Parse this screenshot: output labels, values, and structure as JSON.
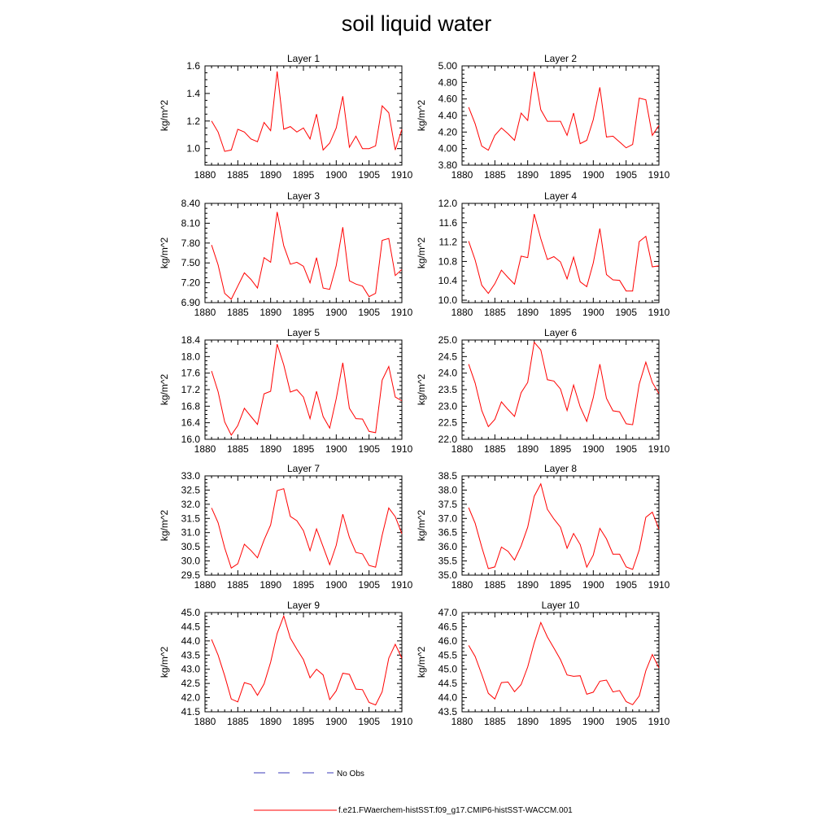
{
  "title": "soil liquid water",
  "legend": {
    "entries": [
      {
        "label": "No Obs",
        "color": "#3b3bb8",
        "dashed": true
      },
      {
        "label": "f.e21.FWaerchem-histSST.f09_g17.CMIP6-histSST-WACCM.001",
        "color": "#ff0000",
        "dashed": false
      }
    ]
  },
  "chart_data": [
    {
      "type": "line",
      "title": "Layer 1",
      "ylabel": "kg/m^2",
      "xlim": [
        1880,
        1910
      ],
      "ylim": [
        0.88,
        1.6
      ],
      "xticks": [
        "1880",
        "1885",
        "1890",
        "1895",
        "1900",
        "1905",
        "1910"
      ],
      "yticks": [
        "1.0",
        "1.2",
        "1.4",
        "1.6"
      ],
      "x": [
        1881,
        1882,
        1883,
        1884,
        1885,
        1886,
        1887,
        1888,
        1889,
        1890,
        1891,
        1892,
        1893,
        1894,
        1895,
        1896,
        1897,
        1898,
        1899,
        1900,
        1901,
        1902,
        1903,
        1904,
        1905,
        1906,
        1907,
        1908,
        1909,
        1910
      ],
      "series": [
        {
          "color": "#ff0000",
          "values": [
            1.2,
            1.12,
            0.98,
            0.99,
            1.14,
            1.12,
            1.07,
            1.05,
            1.19,
            1.13,
            1.56,
            1.14,
            1.16,
            1.12,
            1.15,
            1.07,
            1.25,
            0.99,
            1.04,
            1.15,
            1.38,
            1.01,
            1.09,
            1.0,
            1.0,
            1.02,
            1.31,
            1.26,
            0.99,
            1.14
          ]
        }
      ]
    },
    {
      "type": "line",
      "title": "Layer 2",
      "ylabel": "kg/m^2",
      "xlim": [
        1880,
        1910
      ],
      "ylim": [
        3.8,
        5.0
      ],
      "xticks": [
        "1880",
        "1885",
        "1890",
        "1895",
        "1900",
        "1905",
        "1910"
      ],
      "yticks": [
        "3.80",
        "4.00",
        "4.20",
        "4.40",
        "4.60",
        "4.80",
        "5.00"
      ],
      "x": [
        1881,
        1882,
        1883,
        1884,
        1885,
        1886,
        1887,
        1888,
        1889,
        1890,
        1891,
        1892,
        1893,
        1894,
        1895,
        1896,
        1897,
        1898,
        1899,
        1900,
        1901,
        1902,
        1903,
        1904,
        1905,
        1906,
        1907,
        1908,
        1909,
        1910
      ],
      "series": [
        {
          "color": "#ff0000",
          "values": [
            4.5,
            4.3,
            4.03,
            3.98,
            4.16,
            4.25,
            4.18,
            4.1,
            4.43,
            4.34,
            4.93,
            4.47,
            4.33,
            4.33,
            4.33,
            4.16,
            4.43,
            4.06,
            4.1,
            4.35,
            4.74,
            4.14,
            4.15,
            4.08,
            4.01,
            4.05,
            4.61,
            4.59,
            4.16,
            4.28
          ]
        }
      ]
    },
    {
      "type": "line",
      "title": "Layer 3",
      "ylabel": "kg/m^2",
      "xlim": [
        1880,
        1910
      ],
      "ylim": [
        6.9,
        8.4
      ],
      "xticks": [
        "1880",
        "1885",
        "1890",
        "1895",
        "1900",
        "1905",
        "1910"
      ],
      "yticks": [
        "6.90",
        "7.20",
        "7.50",
        "7.80",
        "8.10",
        "8.40"
      ],
      "x": [
        1881,
        1882,
        1883,
        1884,
        1885,
        1886,
        1887,
        1888,
        1889,
        1890,
        1891,
        1892,
        1893,
        1894,
        1895,
        1896,
        1897,
        1898,
        1899,
        1900,
        1901,
        1902,
        1903,
        1904,
        1905,
        1906,
        1907,
        1908,
        1909,
        1910
      ],
      "series": [
        {
          "color": "#ff0000",
          "values": [
            7.77,
            7.47,
            7.04,
            6.95,
            7.15,
            7.35,
            7.25,
            7.12,
            7.58,
            7.51,
            8.27,
            7.76,
            7.48,
            7.51,
            7.45,
            7.2,
            7.58,
            7.12,
            7.1,
            7.46,
            8.04,
            7.23,
            7.18,
            7.15,
            6.99,
            7.04,
            7.84,
            7.87,
            7.31,
            7.4
          ]
        }
      ]
    },
    {
      "type": "line",
      "title": "Layer 4",
      "ylabel": "kg/m^2",
      "xlim": [
        1880,
        1910
      ],
      "ylim": [
        9.95,
        12.0
      ],
      "xticks": [
        "1880",
        "1885",
        "1890",
        "1895",
        "1900",
        "1905",
        "1910"
      ],
      "yticks": [
        "10.0",
        "10.4",
        "10.8",
        "11.2",
        "11.6",
        "12.0"
      ],
      "x": [
        1881,
        1882,
        1883,
        1884,
        1885,
        1886,
        1887,
        1888,
        1889,
        1890,
        1891,
        1892,
        1893,
        1894,
        1895,
        1896,
        1897,
        1898,
        1899,
        1900,
        1901,
        1902,
        1903,
        1904,
        1905,
        1906,
        1907,
        1908,
        1909,
        1910
      ],
      "series": [
        {
          "color": "#ff0000",
          "values": [
            11.22,
            10.83,
            10.31,
            10.14,
            10.34,
            10.62,
            10.47,
            10.33,
            10.91,
            10.88,
            11.78,
            11.27,
            10.84,
            10.9,
            10.79,
            10.44,
            10.89,
            10.38,
            10.28,
            10.77,
            11.48,
            10.53,
            10.42,
            10.41,
            10.19,
            10.19,
            11.21,
            11.32,
            10.69,
            10.71
          ]
        }
      ]
    },
    {
      "type": "line",
      "title": "Layer 5",
      "ylabel": "kg/m^2",
      "xlim": [
        1880,
        1910
      ],
      "ylim": [
        16.0,
        18.4
      ],
      "xticks": [
        "1880",
        "1885",
        "1890",
        "1895",
        "1900",
        "1905",
        "1910"
      ],
      "yticks": [
        "16.0",
        "16.4",
        "16.8",
        "17.2",
        "17.6",
        "18.0",
        "18.4"
      ],
      "x": [
        1881,
        1882,
        1883,
        1884,
        1885,
        1886,
        1887,
        1888,
        1889,
        1890,
        1891,
        1892,
        1893,
        1894,
        1895,
        1896,
        1897,
        1898,
        1899,
        1900,
        1901,
        1902,
        1903,
        1904,
        1905,
        1906,
        1907,
        1908,
        1909,
        1910
      ],
      "series": [
        {
          "color": "#ff0000",
          "values": [
            17.65,
            17.15,
            16.42,
            16.1,
            16.33,
            16.75,
            16.55,
            16.36,
            17.1,
            17.16,
            18.3,
            17.8,
            17.14,
            17.2,
            17.02,
            16.5,
            17.16,
            16.55,
            16.27,
            16.98,
            17.85,
            16.75,
            16.5,
            16.49,
            16.19,
            16.16,
            17.43,
            17.76,
            17.02,
            16.93
          ]
        }
      ]
    },
    {
      "type": "line",
      "title": "Layer 6",
      "ylabel": "kg/m^2",
      "xlim": [
        1880,
        1910
      ],
      "ylim": [
        22.0,
        25.0
      ],
      "xticks": [
        "1880",
        "1885",
        "1890",
        "1895",
        "1900",
        "1905",
        "1910"
      ],
      "yticks": [
        "22.0",
        "22.5",
        "23.0",
        "23.5",
        "24.0",
        "24.5",
        "25.0"
      ],
      "x": [
        1881,
        1882,
        1883,
        1884,
        1885,
        1886,
        1887,
        1888,
        1889,
        1890,
        1891,
        1892,
        1893,
        1894,
        1895,
        1896,
        1897,
        1898,
        1899,
        1900,
        1901,
        1902,
        1903,
        1904,
        1905,
        1906,
        1907,
        1908,
        1909,
        1910
      ],
      "series": [
        {
          "color": "#ff0000",
          "values": [
            24.27,
            23.7,
            22.87,
            22.38,
            22.6,
            23.13,
            22.9,
            22.69,
            23.41,
            23.72,
            24.93,
            24.7,
            23.8,
            23.76,
            23.52,
            22.87,
            23.64,
            22.98,
            22.54,
            23.26,
            24.27,
            23.24,
            22.86,
            22.83,
            22.47,
            22.44,
            23.67,
            24.33,
            23.72,
            23.38
          ]
        }
      ]
    },
    {
      "type": "line",
      "title": "Layer 7",
      "ylabel": "kg/m^2",
      "xlim": [
        1880,
        1910
      ],
      "ylim": [
        29.5,
        33.0
      ],
      "xticks": [
        "1880",
        "1885",
        "1890",
        "1895",
        "1900",
        "1905",
        "1910"
      ],
      "yticks": [
        "29.5",
        "30.0",
        "30.5",
        "31.0",
        "31.5",
        "32.0",
        "32.5",
        "33.0"
      ],
      "x": [
        1881,
        1882,
        1883,
        1884,
        1885,
        1886,
        1887,
        1888,
        1889,
        1890,
        1891,
        1892,
        1893,
        1894,
        1895,
        1896,
        1897,
        1898,
        1899,
        1900,
        1901,
        1902,
        1903,
        1904,
        1905,
        1906,
        1907,
        1908,
        1909,
        1910
      ],
      "series": [
        {
          "color": "#ff0000",
          "values": [
            31.87,
            31.35,
            30.46,
            29.75,
            29.9,
            30.59,
            30.37,
            30.11,
            30.74,
            31.27,
            32.48,
            32.55,
            31.57,
            31.42,
            31.07,
            30.36,
            31.13,
            30.5,
            29.87,
            30.55,
            31.65,
            30.83,
            30.3,
            30.25,
            29.84,
            29.78,
            30.91,
            31.87,
            31.56,
            30.96
          ]
        }
      ]
    },
    {
      "type": "line",
      "title": "Layer 8",
      "ylabel": "kg/m^2",
      "xlim": [
        1880,
        1910
      ],
      "ylim": [
        35.0,
        38.5
      ],
      "xticks": [
        "1880",
        "1885",
        "1890",
        "1895",
        "1900",
        "1905",
        "1910"
      ],
      "yticks": [
        "35.0",
        "35.5",
        "36.0",
        "36.5",
        "37.0",
        "37.5",
        "38.0",
        "38.5"
      ],
      "x": [
        1881,
        1882,
        1883,
        1884,
        1885,
        1886,
        1887,
        1888,
        1889,
        1890,
        1891,
        1892,
        1893,
        1894,
        1895,
        1896,
        1897,
        1898,
        1899,
        1900,
        1901,
        1902,
        1903,
        1904,
        1905,
        1906,
        1907,
        1908,
        1909,
        1910
      ],
      "series": [
        {
          "color": "#ff0000",
          "values": [
            37.38,
            36.83,
            35.99,
            35.23,
            35.29,
            35.99,
            35.84,
            35.53,
            36.03,
            36.69,
            37.78,
            38.22,
            37.32,
            36.98,
            36.69,
            35.95,
            36.47,
            36.08,
            35.28,
            35.71,
            36.65,
            36.28,
            35.74,
            35.74,
            35.29,
            35.2,
            35.89,
            37.04,
            37.22,
            36.62
          ]
        }
      ]
    },
    {
      "type": "line",
      "title": "Layer 9",
      "ylabel": "kg/m^2",
      "xlim": [
        1880,
        1910
      ],
      "ylim": [
        41.5,
        45.0
      ],
      "xticks": [
        "1880",
        "1885",
        "1890",
        "1895",
        "1900",
        "1905",
        "1910"
      ],
      "yticks": [
        "41.5",
        "42.0",
        "42.5",
        "43.0",
        "43.5",
        "44.0",
        "44.5",
        "45.0"
      ],
      "x": [
        1881,
        1882,
        1883,
        1884,
        1885,
        1886,
        1887,
        1888,
        1889,
        1890,
        1891,
        1892,
        1893,
        1894,
        1895,
        1896,
        1897,
        1898,
        1899,
        1900,
        1901,
        1902,
        1903,
        1904,
        1905,
        1906,
        1907,
        1908,
        1909,
        1910
      ],
      "series": [
        {
          "color": "#ff0000",
          "values": [
            44.05,
            43.5,
            42.77,
            41.95,
            41.85,
            42.53,
            42.46,
            42.08,
            42.48,
            43.25,
            44.26,
            44.88,
            44.1,
            43.71,
            43.34,
            42.7,
            43.0,
            42.8,
            41.93,
            42.24,
            42.86,
            42.82,
            42.3,
            42.28,
            41.83,
            41.74,
            42.21,
            43.39,
            43.88,
            43.39
          ]
        }
      ]
    },
    {
      "type": "line",
      "title": "Layer 10",
      "ylabel": "kg/m^2",
      "xlim": [
        1880,
        1910
      ],
      "ylim": [
        43.5,
        47.0
      ],
      "xticks": [
        "1880",
        "1885",
        "1890",
        "1895",
        "1900",
        "1905",
        "1910"
      ],
      "yticks": [
        "43.5",
        "44.0",
        "44.5",
        "45.0",
        "45.5",
        "46.0",
        "46.5",
        "47.0"
      ],
      "x": [
        1881,
        1882,
        1883,
        1884,
        1885,
        1886,
        1887,
        1888,
        1889,
        1890,
        1891,
        1892,
        1893,
        1894,
        1895,
        1896,
        1897,
        1898,
        1899,
        1900,
        1901,
        1902,
        1903,
        1904,
        1905,
        1906,
        1907,
        1908,
        1909,
        1910
      ],
      "series": [
        {
          "color": "#ff0000",
          "values": [
            45.84,
            45.45,
            44.82,
            44.15,
            43.95,
            44.53,
            44.55,
            44.21,
            44.46,
            45.08,
            45.93,
            46.65,
            46.14,
            45.75,
            45.34,
            44.8,
            44.75,
            44.77,
            44.12,
            44.19,
            44.58,
            44.62,
            44.2,
            44.25,
            43.86,
            43.75,
            44.06,
            44.95,
            45.52,
            45.05
          ]
        }
      ]
    }
  ]
}
